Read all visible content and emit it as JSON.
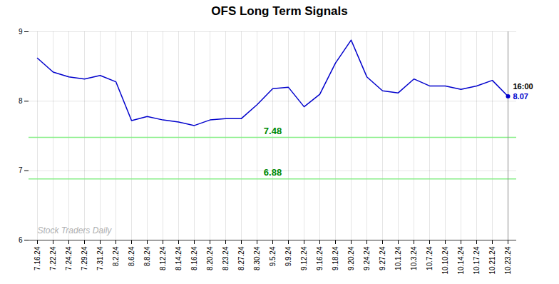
{
  "chart_data": {
    "type": "line",
    "title": "OFS Long Term Signals",
    "categories": [
      "7.16.24",
      "7.22.24",
      "7.24.24",
      "7.29.24",
      "7.31.24",
      "8.2.24",
      "8.6.24",
      "8.8.24",
      "8.12.24",
      "8.14.24",
      "8.16.24",
      "8.20.24",
      "8.23.24",
      "8.27.24",
      "8.30.24",
      "9.5.24",
      "9.9.24",
      "9.12.24",
      "9.16.24",
      "9.18.24",
      "9.20.24",
      "9.24.24",
      "9.27.24",
      "10.1.24",
      "10.3.24",
      "10.7.24",
      "10.10.24",
      "10.14.24",
      "10.17.24",
      "10.21.24",
      "10.23.24"
    ],
    "values": [
      8.62,
      8.42,
      8.35,
      8.32,
      8.37,
      8.28,
      7.72,
      7.78,
      7.73,
      7.7,
      7.65,
      7.73,
      7.75,
      7.75,
      7.95,
      8.18,
      8.2,
      7.92,
      8.1,
      8.55,
      8.88,
      8.35,
      8.15,
      8.12,
      8.32,
      8.22,
      8.22,
      8.17,
      8.22,
      8.3,
      8.07
    ],
    "color": "#0000cc",
    "ylim": [
      6.0,
      9.0
    ],
    "yticks": [
      6,
      7,
      8,
      9
    ],
    "grid": true,
    "hlines": [
      {
        "value": 7.48,
        "label": "7.48",
        "color": "#88ee88",
        "label_color": "#008800"
      },
      {
        "value": 6.88,
        "label": "6.88",
        "color": "#88ee88",
        "label_color": "#008800"
      }
    ],
    "annotations": [
      {
        "text": "16:00",
        "color": "#000000",
        "x": "10.23.24",
        "y": 8.07
      },
      {
        "text": "8.07",
        "color": "#0000cc",
        "x": "10.23.24",
        "y": 8.07
      }
    ],
    "watermark": "Stock Traders Daily"
  }
}
